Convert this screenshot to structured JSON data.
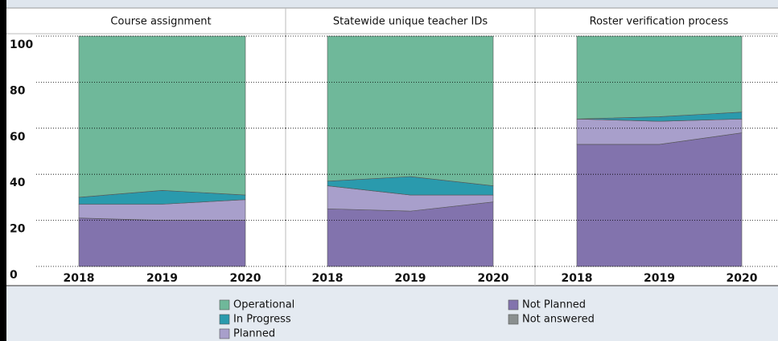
{
  "chart_data": [
    {
      "type": "area",
      "title": "Course assignment",
      "categories": [
        "2018",
        "2019",
        "2020"
      ],
      "series": [
        {
          "name": "Operational",
          "color": "#6fb89a",
          "values": [
            70,
            67,
            69
          ]
        },
        {
          "name": "In Progress",
          "color": "#2a9aad",
          "values": [
            3,
            6,
            2
          ]
        },
        {
          "name": "Planned",
          "color": "#a89fcb",
          "values": [
            6,
            7,
            9
          ]
        },
        {
          "name": "Not Planned",
          "color": "#8273ad",
          "values": [
            21,
            20,
            20
          ]
        },
        {
          "name": "Not answered",
          "color": "#8a8f8f",
          "values": [
            0,
            0,
            0
          ]
        }
      ],
      "ylim": [
        0,
        100
      ],
      "yticks": [
        0,
        20,
        40,
        60,
        80,
        100
      ],
      "grid": true,
      "stacked": true
    },
    {
      "type": "area",
      "title": "Statewide unique teacher IDs",
      "categories": [
        "2018",
        "2019",
        "2020"
      ],
      "series": [
        {
          "name": "Operational",
          "color": "#6fb89a",
          "values": [
            63,
            61,
            65
          ]
        },
        {
          "name": "In Progress",
          "color": "#2a9aad",
          "values": [
            2,
            8,
            4
          ]
        },
        {
          "name": "Planned",
          "color": "#a89fcb",
          "values": [
            10,
            7,
            3
          ]
        },
        {
          "name": "Not Planned",
          "color": "#8273ad",
          "values": [
            25,
            24,
            28
          ]
        },
        {
          "name": "Not answered",
          "color": "#8a8f8f",
          "values": [
            0,
            0,
            0
          ]
        }
      ],
      "ylim": [
        0,
        100
      ],
      "yticks": [
        0,
        20,
        40,
        60,
        80,
        100
      ],
      "grid": true,
      "stacked": true
    },
    {
      "type": "area",
      "title": "Roster verification process",
      "categories": [
        "2018",
        "2019",
        "2020"
      ],
      "series": [
        {
          "name": "Operational",
          "color": "#6fb89a",
          "values": [
            36,
            35,
            33
          ]
        },
        {
          "name": "In Progress",
          "color": "#2a9aad",
          "values": [
            0,
            2,
            3
          ]
        },
        {
          "name": "Planned",
          "color": "#a89fcb",
          "values": [
            11,
            10,
            6
          ]
        },
        {
          "name": "Not Planned",
          "color": "#8273ad",
          "values": [
            53,
            53,
            58
          ]
        },
        {
          "name": "Not answered",
          "color": "#8a8f8f",
          "values": [
            0,
            0,
            0
          ]
        }
      ],
      "ylim": [
        0,
        100
      ],
      "yticks": [
        0,
        20,
        40,
        60,
        80,
        100
      ],
      "grid": true,
      "stacked": true
    }
  ]
}
